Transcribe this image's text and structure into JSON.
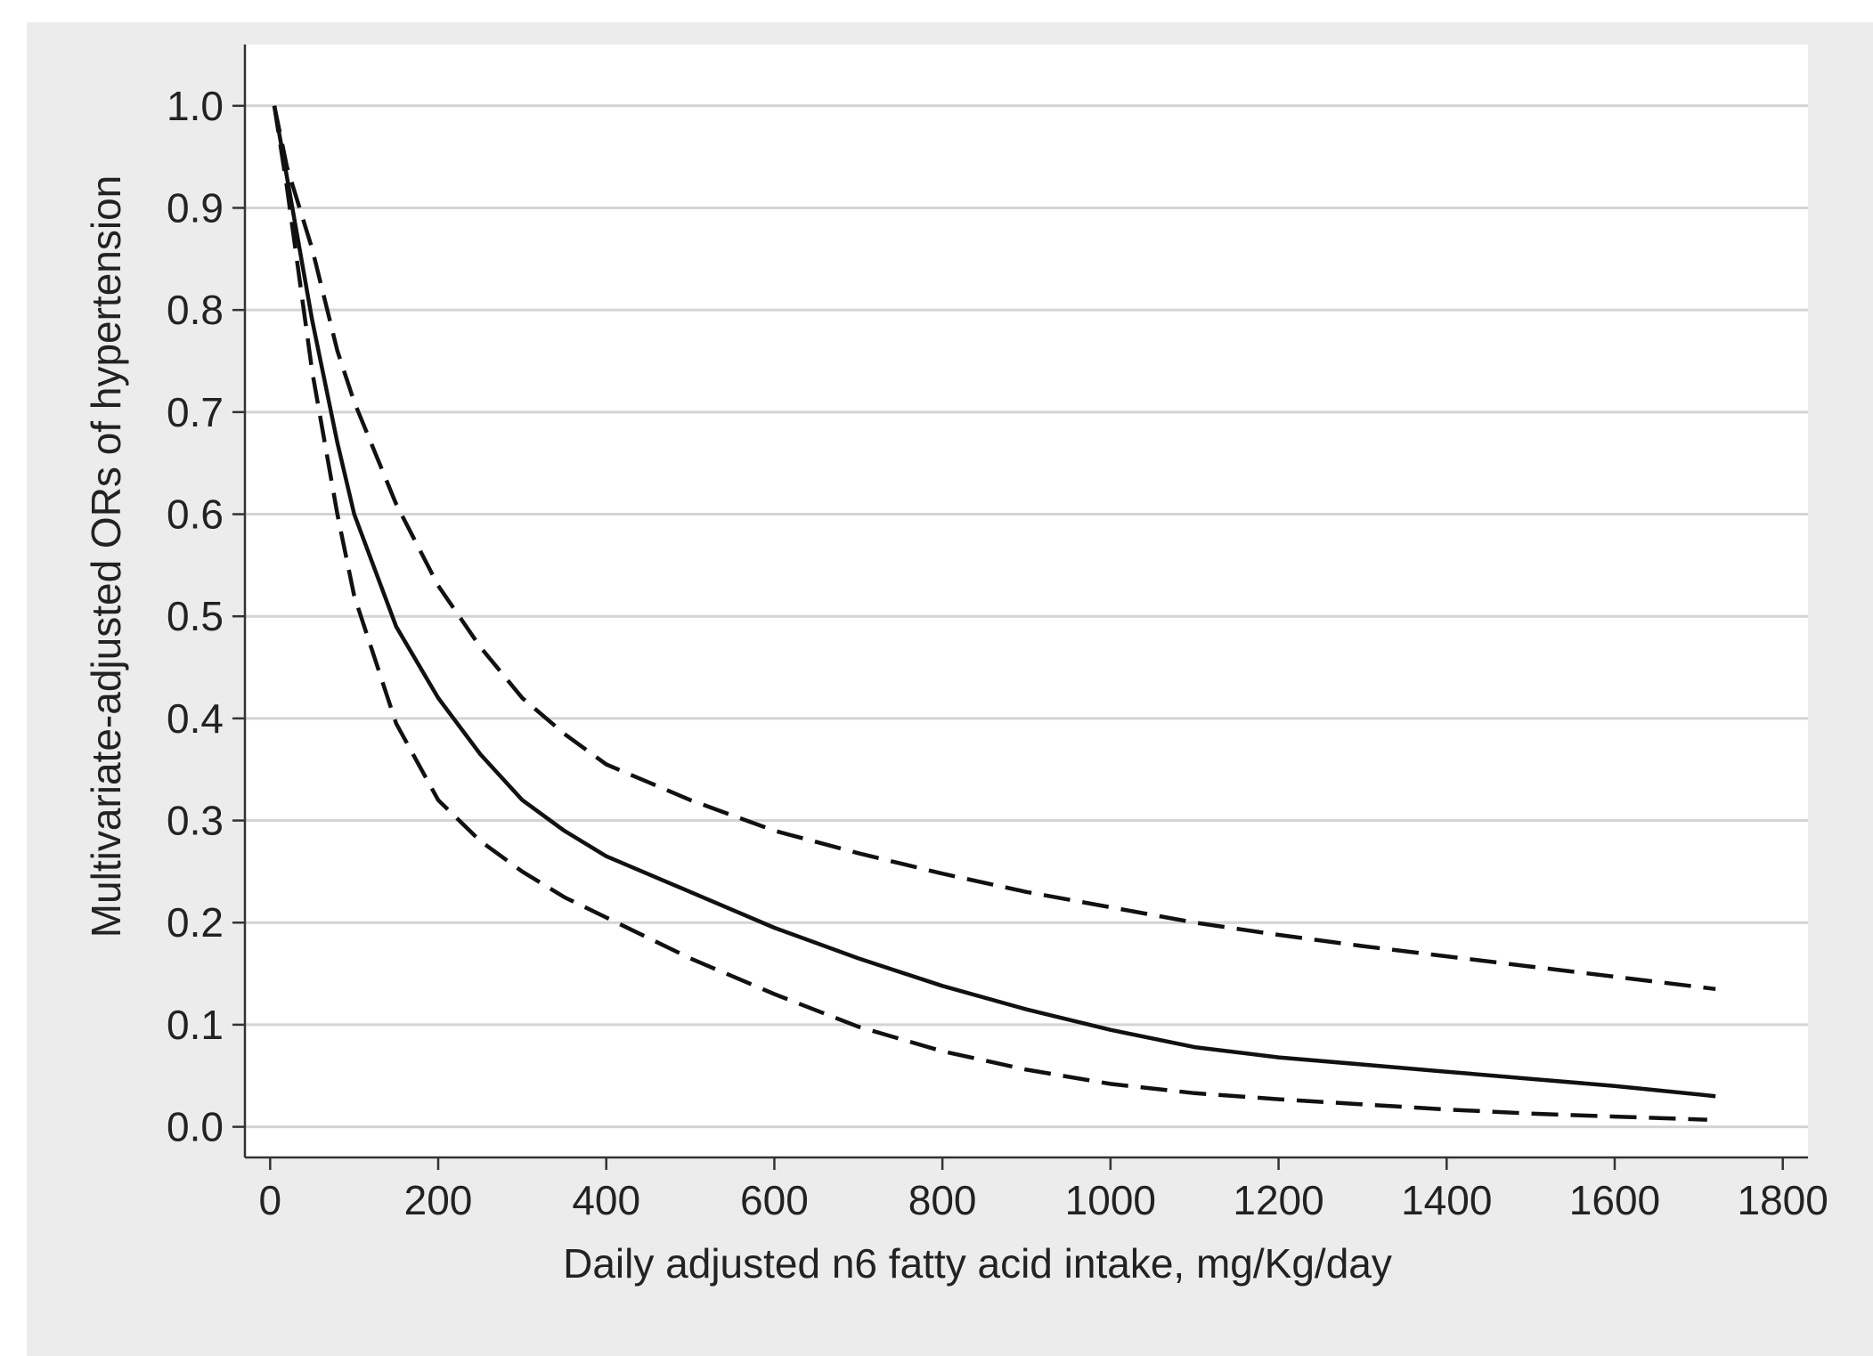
{
  "chart_data": {
    "type": "line",
    "title": "",
    "xlabel": "Daily adjusted n6 fatty acid intake, mg/Kg/day",
    "ylabel": "Multivariate-adjusted ORs of hypertension",
    "xlim": [
      -30,
      1830
    ],
    "ylim": [
      -0.03,
      1.06
    ],
    "x_ticks": [
      0,
      200,
      400,
      600,
      800,
      1000,
      1200,
      1400,
      1600,
      1800
    ],
    "x_tick_labels": [
      "0",
      "200",
      "400",
      "600",
      "800",
      "1000",
      "1200",
      "1400",
      "1600",
      "1800"
    ],
    "y_ticks": [
      0.0,
      0.1,
      0.2,
      0.3,
      0.4,
      0.5,
      0.6,
      0.7,
      0.8,
      0.9,
      1.0
    ],
    "y_tick_labels": [
      "0.0",
      "0.1",
      "0.2",
      "0.3",
      "0.4",
      "0.5",
      "0.6",
      "0.7",
      "0.8",
      "0.9",
      "1.0"
    ],
    "grid": "horizontal",
    "legend": "none",
    "series": [
      {
        "style": "solid",
        "x": [
          5,
          20,
          50,
          80,
          100,
          150,
          200,
          250,
          300,
          350,
          400,
          500,
          600,
          700,
          800,
          900,
          1000,
          1100,
          1200,
          1300,
          1400,
          1500,
          1600,
          1720
        ],
        "y": [
          1.0,
          0.93,
          0.79,
          0.67,
          0.6,
          0.49,
          0.42,
          0.365,
          0.32,
          0.29,
          0.265,
          0.23,
          0.195,
          0.165,
          0.138,
          0.115,
          0.095,
          0.078,
          0.068,
          0.061,
          0.054,
          0.047,
          0.04,
          0.03
        ]
      },
      {
        "style": "dashed",
        "x": [
          5,
          20,
          50,
          80,
          100,
          150,
          200,
          250,
          300,
          350,
          400,
          500,
          600,
          700,
          800,
          900,
          1000,
          1100,
          1200,
          1300,
          1400,
          1500,
          1600,
          1720
        ],
        "y": [
          1.0,
          0.94,
          0.86,
          0.76,
          0.71,
          0.61,
          0.53,
          0.47,
          0.42,
          0.385,
          0.355,
          0.32,
          0.29,
          0.268,
          0.248,
          0.23,
          0.215,
          0.2,
          0.188,
          0.177,
          0.167,
          0.157,
          0.147,
          0.135
        ]
      },
      {
        "style": "dashed",
        "x": [
          5,
          20,
          50,
          80,
          100,
          150,
          200,
          250,
          300,
          350,
          400,
          500,
          600,
          700,
          800,
          900,
          1000,
          1100,
          1200,
          1300,
          1400,
          1500,
          1600,
          1710
        ],
        "y": [
          1.0,
          0.92,
          0.74,
          0.6,
          0.52,
          0.395,
          0.32,
          0.28,
          0.25,
          0.225,
          0.205,
          0.165,
          0.13,
          0.098,
          0.074,
          0.056,
          0.042,
          0.033,
          0.027,
          0.022,
          0.017,
          0.013,
          0.01,
          0.007
        ]
      }
    ],
    "colors": {
      "line": "#111111",
      "grid": "#d4d4d4",
      "frame_background": "#ececec",
      "plot_background": "#ffffff"
    }
  }
}
